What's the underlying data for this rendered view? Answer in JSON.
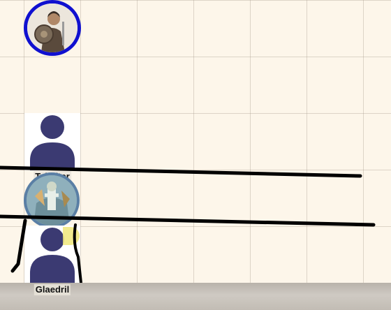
{
  "map": {
    "background_color": "#fdf6ea",
    "grid_color": "#c8bfb0"
  },
  "tokens": [
    {
      "id": "token-a",
      "name": "",
      "type": "portrait",
      "ring_color": "#1010d0",
      "art": "armored-warrior-with-shield-icon"
    },
    {
      "id": "tailbiter",
      "name": "Tailbiter",
      "type": "placeholder",
      "silhouette_color": "#3b3a72",
      "art": "person-silhouette-icon"
    },
    {
      "id": "token-b",
      "name": "",
      "type": "portrait",
      "ring_color": "#5a7fa5",
      "art": "armored-knight-icon"
    },
    {
      "id": "glaedril",
      "name": "Glaedril",
      "type": "placeholder",
      "silhouette_color": "#3b3a72",
      "art": "person-silhouette-icon"
    }
  ],
  "highlight": {
    "color": "#f0e87a"
  },
  "colors": {
    "ink": "#000000",
    "bottom_bar": "#c2bcb4"
  }
}
